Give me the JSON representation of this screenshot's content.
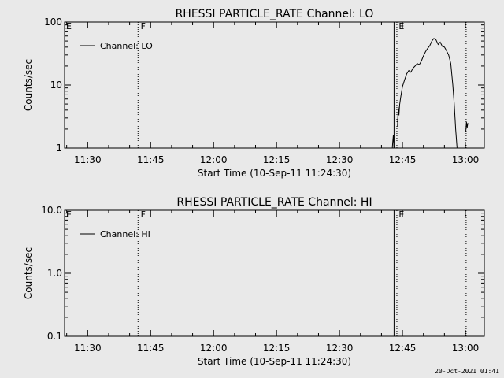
{
  "footer": {
    "timestamp": "20-Oct-2021 01:41"
  },
  "chart_data": [
    {
      "type": "line",
      "title": "RHESSI PARTICLE_RATE Channel: LO",
      "xlabel": "Start Time (10-Sep-11 11:24:30)",
      "ylabel": "Counts/sec",
      "y_scale": "log",
      "ylim": [
        1,
        100
      ],
      "yticks": [
        1,
        10,
        100
      ],
      "ytick_labels": [
        "1",
        "10",
        "100"
      ],
      "xlim": [
        "11:24:30",
        "13:04:30"
      ],
      "xticks": [
        "11:30",
        "11:45",
        "12:00",
        "12:15",
        "12:30",
        "12:45",
        "13:00"
      ],
      "grid": false,
      "legend": {
        "position": "top-left",
        "entries": [
          "Channel: LO"
        ]
      },
      "flags": [
        {
          "label": "E",
          "time": "11:24:30"
        },
        {
          "label": "F",
          "time": "11:42:15"
        },
        {
          "label": "E",
          "time": "12:43:45"
        }
      ],
      "markers": [
        {
          "time": "11:42:00",
          "style": "dotted"
        },
        {
          "time": "12:43:00",
          "style": "solid"
        },
        {
          "time": "12:43:40",
          "style": "dotted"
        },
        {
          "time": "13:00:10",
          "style": "dotted"
        }
      ],
      "series": [
        {
          "name": "Channel: LO",
          "segments": [
            [
              [
                "12:42:30",
                0.8
              ],
              [
                "12:42:40",
                1.2
              ],
              [
                "12:42:50",
                1.6
              ],
              [
                "12:43:00",
                0.9
              ]
            ],
            [
              [
                "12:43:50",
                2.2
              ],
              [
                "12:44:00",
                4.5
              ],
              [
                "12:44:10",
                3.3
              ],
              [
                "12:44:20",
                4.9
              ],
              [
                "12:44:40",
                7.0
              ],
              [
                "12:45:00",
                9.5
              ],
              [
                "12:45:30",
                12.0
              ],
              [
                "12:46:00",
                15.0
              ],
              [
                "12:46:30",
                17.0
              ],
              [
                "12:47:00",
                16.0
              ],
              [
                "12:47:30",
                18.5
              ],
              [
                "12:48:00",
                20.0
              ],
              [
                "12:48:30",
                22.0
              ],
              [
                "12:49:00",
                21.0
              ],
              [
                "12:49:30",
                24.0
              ],
              [
                "12:50:00",
                29.0
              ],
              [
                "12:50:30",
                34.0
              ],
              [
                "12:51:00",
                38.0
              ],
              [
                "12:51:30",
                42.0
              ],
              [
                "12:52:00",
                50.0
              ],
              [
                "12:52:30",
                55.0
              ],
              [
                "12:53:00",
                52.0
              ],
              [
                "12:53:30",
                44.0
              ],
              [
                "12:54:00",
                48.0
              ],
              [
                "12:54:30",
                41.0
              ],
              [
                "12:55:00",
                40.0
              ],
              [
                "12:55:30",
                35.0
              ],
              [
                "12:56:00",
                30.0
              ],
              [
                "12:56:30",
                22.0
              ],
              [
                "12:57:00",
                10.0
              ],
              [
                "12:57:20",
                5.0
              ],
              [
                "12:57:40",
                2.0
              ],
              [
                "12:58:00",
                1.0
              ],
              [
                "12:58:10",
                0.8
              ]
            ],
            [
              [
                "13:00:05",
                1.8
              ],
              [
                "13:00:15",
                2.6
              ],
              [
                "13:00:25",
                2.1
              ],
              [
                "13:00:35",
                2.5
              ]
            ]
          ]
        }
      ]
    },
    {
      "type": "line",
      "title": "RHESSI PARTICLE_RATE Channel: HI",
      "xlabel": "Start Time (10-Sep-11 11:24:30)",
      "ylabel": "Counts/sec",
      "y_scale": "log",
      "ylim": [
        0.1,
        10
      ],
      "yticks": [
        0.1,
        1,
        10
      ],
      "ytick_labels": [
        "0.1",
        "1.0",
        "10.0"
      ],
      "xlim": [
        "11:24:30",
        "13:04:30"
      ],
      "xticks": [
        "11:30",
        "11:45",
        "12:00",
        "12:15",
        "12:30",
        "12:45",
        "13:00"
      ],
      "grid": false,
      "legend": {
        "position": "top-left",
        "entries": [
          "Channel: HI"
        ]
      },
      "flags": [
        {
          "label": "E",
          "time": "11:24:30"
        },
        {
          "label": "F",
          "time": "11:42:15"
        },
        {
          "label": "E",
          "time": "12:43:45"
        }
      ],
      "markers": [
        {
          "time": "11:42:00",
          "style": "dotted"
        },
        {
          "time": "12:43:00",
          "style": "solid"
        },
        {
          "time": "12:43:40",
          "style": "dotted"
        },
        {
          "time": "13:00:10",
          "style": "dotted"
        }
      ],
      "series": [
        {
          "name": "Channel: HI",
          "segments": []
        }
      ]
    }
  ]
}
